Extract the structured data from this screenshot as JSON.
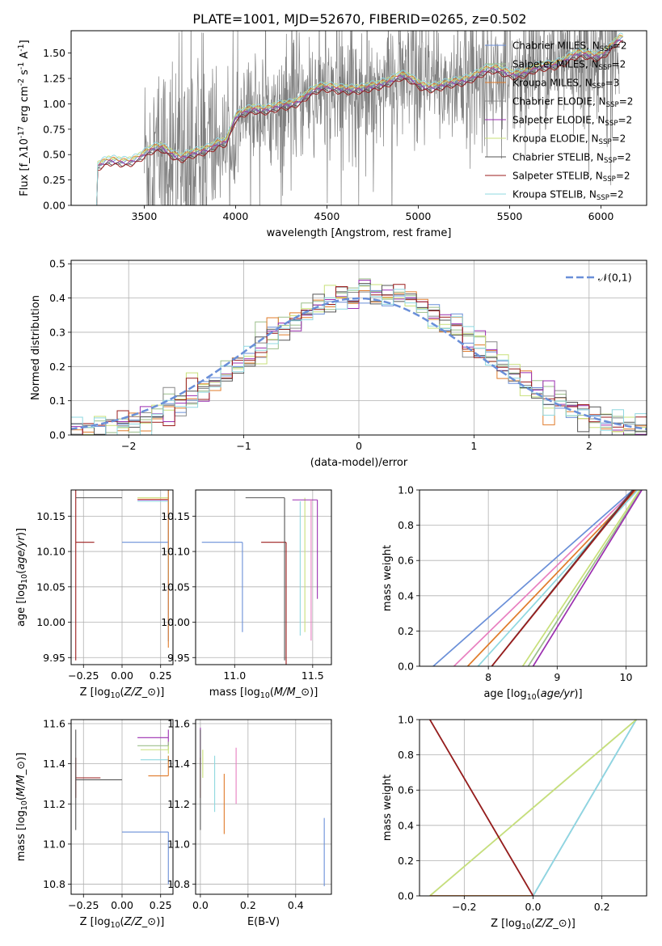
{
  "title": "PLATE=1001, MJD=52670, FIBERID=0265, z=0.502",
  "colors": {
    "c1": "#6a8fd8",
    "c2": "#9bbf8a",
    "c3": "#e07b2a",
    "c4": "#888888",
    "c5": "#9b2fb0",
    "c6": "#c8e07a",
    "c7": "#555555",
    "c8": "#9b1c1c",
    "c9": "#8fd8e0",
    "pink": "#e87fc0",
    "observed": "#7f7f7f",
    "grid": "#b0b0b0"
  },
  "chart_data": [
    {
      "id": "spectrum",
      "type": "line",
      "xlabel": "wavelength [Angstrom, rest frame]",
      "ylabel": "Flux [f$_\\lambda$10$^{-17}$ erg cm$^{-2}$ s$^{-1}$ A$^{-1}$]",
      "xlim": [
        3100,
        6250
      ],
      "ylim": [
        0,
        1.72
      ],
      "xticks": [
        3500,
        4000,
        4500,
        5000,
        5500,
        6000
      ],
      "yticks": [
        0.0,
        0.25,
        0.5,
        0.75,
        1.0,
        1.25,
        1.5
      ],
      "xtick_labels": [
        "3500",
        "4000",
        "4500",
        "5000",
        "5500",
        "6000"
      ],
      "ytick_labels": [
        "0.00",
        "0.25",
        "0.50",
        "0.75",
        "1.00",
        "1.25",
        "1.50"
      ],
      "grid": false,
      "legend_loc": "upper right",
      "observed_range": [
        3500,
        6100
      ],
      "model_anchor_x": [
        3240,
        3245,
        3300,
        3400,
        3500,
        3600,
        3700,
        3800,
        3900,
        3950,
        4000,
        4100,
        4200,
        4300,
        4400,
        4500,
        4600,
        4700,
        4800,
        4900,
        5000,
        5100,
        5200,
        5300,
        5400,
        5500,
        5600,
        5700,
        5800,
        5900,
        6000,
        6100
      ],
      "model_anchor_y": [
        0.0,
        0.37,
        0.42,
        0.45,
        0.47,
        0.52,
        0.46,
        0.52,
        0.62,
        0.6,
        0.8,
        0.93,
        0.95,
        1.0,
        1.08,
        1.1,
        1.15,
        1.14,
        1.2,
        1.22,
        1.16,
        1.18,
        1.2,
        1.25,
        1.28,
        1.3,
        1.32,
        1.36,
        1.38,
        1.45,
        1.5,
        1.62
      ],
      "series": [
        {
          "name": "Chabrier MILES, N$_{SSP}$=2",
          "color": "#6a8fd8",
          "offset": 0.02
        },
        {
          "name": "Salpeter MILES, N$_{SSP}$=2",
          "color": "#9bbf8a",
          "offset": 0.03
        },
        {
          "name": "Kroupa MILES, N$_{SSP}$=3",
          "color": "#e07b2a",
          "offset": 0.04
        },
        {
          "name": "Chabrier ELODIE, N$_{SSP}$=2",
          "color": "#888888",
          "offset": 0.0
        },
        {
          "name": "Salpeter ELODIE, N$_{SSP}$=2",
          "color": "#9b2fb0",
          "offset": 0.01
        },
        {
          "name": "Kroupa ELODIE, N$_{SSP}$=2",
          "color": "#c8e07a",
          "offset": 0.05
        },
        {
          "name": "Chabrier STELIB, N$_{SSP}$=2",
          "color": "#555555",
          "offset": -0.01
        },
        {
          "name": "Salpeter STELIB, N$_{SSP}$=2",
          "color": "#9b1c1c",
          "offset": -0.02
        },
        {
          "name": "Kroupa STELIB, N$_{SSP}$=2",
          "color": "#8fd8e0",
          "offset": 0.06
        }
      ]
    },
    {
      "id": "residuals",
      "type": "histogram",
      "xlabel": "(data-model)/error",
      "ylabel": "Normed distribution",
      "xlim": [
        -2.5,
        2.5
      ],
      "ylim": [
        0,
        0.51
      ],
      "xticks": [
        -2,
        -1,
        0,
        1,
        2
      ],
      "yticks": [
        0.0,
        0.1,
        0.2,
        0.3,
        0.4,
        0.5
      ],
      "xtick_labels": [
        "−2",
        "−1",
        "0",
        "1",
        "2"
      ],
      "ytick_labels": [
        "0.0",
        "0.1",
        "0.2",
        "0.3",
        "0.4",
        "0.5"
      ],
      "grid": true,
      "legend_loc": "upper right",
      "reference": {
        "name": "$\\mathcal{N}(0,1)$",
        "color": "#6a8fd8",
        "style": "dashed"
      },
      "bins": 50,
      "bin_range": [
        -2.5,
        2.5
      ]
    },
    {
      "id": "age_vs_Z",
      "type": "errorbar",
      "xlabel": "Z [log$_{10}$($Z/Z_\\odot$)]",
      "ylabel": "age  [log$_{10}$($age/yr$)]",
      "xlim": [
        -0.33,
        0.33
      ],
      "ylim": [
        9.94,
        10.187
      ],
      "xticks": [
        -0.25,
        0.0,
        0.25
      ],
      "yticks": [
        9.95,
        10.0,
        10.05,
        10.1,
        10.15
      ],
      "xtick_labels": [
        "−0.25",
        "0.00",
        "0.25"
      ],
      "ytick_labels": [
        "9.95",
        "10.00",
        "10.05",
        "10.10",
        "10.15"
      ],
      "grid": true,
      "points": [
        {
          "x": -0.3,
          "y": 10.176,
          "xerr": 0.0,
          "yerr": 0.23,
          "color": "#9b1c1c"
        },
        {
          "x": -0.3,
          "y": 10.113,
          "xerr": [
            0.0,
            0.12
          ],
          "yerr": 0.0,
          "color": "#9b1c1c"
        },
        {
          "x": -0.3,
          "y": 10.176,
          "xerr": [
            0.0,
            0.3
          ],
          "yerr": 0.0,
          "color": "#555555"
        },
        {
          "x": 0.3,
          "y": 10.113,
          "xerr": [
            0.3,
            0.0
          ],
          "yerr": 0.14,
          "color": "#6a8fd8"
        },
        {
          "x": 0.3,
          "y": 10.176,
          "xerr": [
            0.2,
            0.0
          ],
          "yerr": 0.08,
          "color": "#c8e07a"
        },
        {
          "x": 0.3,
          "y": 10.173,
          "xerr": [
            0.2,
            0.0
          ],
          "yerr": 0.07,
          "color": "#9b2fb0"
        },
        {
          "x": 0.3,
          "y": 10.171,
          "xerr": [
            0.2,
            0.0
          ],
          "yerr": 0.11,
          "color": "#8fd8e0"
        },
        {
          "x": 0.3,
          "y": 10.174,
          "xerr": [
            0.2,
            0.0
          ],
          "yerr": 0.21,
          "color": "#e07b2a"
        }
      ]
    },
    {
      "id": "age_vs_mass",
      "type": "errorbar",
      "xlabel": "mass [log$_{10}$($M/M_\\odot$)]",
      "ylabel": "",
      "xlim": [
        10.75,
        11.62
      ],
      "ylim": [
        9.94,
        10.187
      ],
      "xticks": [
        11.0,
        11.5
      ],
      "yticks": [
        9.95,
        10.0,
        10.05,
        10.1,
        10.15
      ],
      "xtick_labels": [
        "11.0",
        "11.5"
      ],
      "ytick_labels": [
        "9.95",
        "10.00",
        "10.05",
        "10.10",
        "10.15"
      ],
      "grid": true,
      "points": [
        {
          "x": 11.05,
          "y": 10.113,
          "xerr": [
            0.26,
            0.0
          ],
          "yerr": [
            0.127,
            0.0
          ],
          "color": "#6a8fd8"
        },
        {
          "x": 11.33,
          "y": 10.113,
          "xerr": [
            0.16,
            0.0
          ],
          "yerr": [
            0.22,
            0.0
          ],
          "color": "#9b1c1c"
        },
        {
          "x": 11.32,
          "y": 10.176,
          "xerr": [
            0.25,
            0.0
          ],
          "yerr": [
            0.23,
            0.0
          ],
          "color": "#555555"
        },
        {
          "x": 11.45,
          "y": 10.176,
          "xerr": [
            0.0,
            0.0
          ],
          "yerr": [
            0.19,
            0.0
          ],
          "color": "#c8e07a"
        },
        {
          "x": 11.53,
          "y": 10.173,
          "xerr": [
            0.16,
            0.0
          ],
          "yerr": [
            0.14,
            0.0
          ],
          "color": "#9b2fb0"
        },
        {
          "x": 11.42,
          "y": 10.171,
          "xerr": [
            0.0,
            0.0
          ],
          "yerr": [
            0.19,
            0.0
          ],
          "color": "#8fd8e0"
        },
        {
          "x": 11.49,
          "y": 10.174,
          "xerr": [
            0.0,
            0.0
          ],
          "yerr": [
            0.2,
            0.0
          ],
          "color": "#e87fc0"
        }
      ]
    },
    {
      "id": "cumulative_age",
      "type": "line",
      "xlabel": "age  [log$_{10}$($age/yr$)]",
      "ylabel": "mass weight",
      "xlim": [
        7.0,
        10.3
      ],
      "ylim": [
        0.0,
        1.0
      ],
      "xticks": [
        8,
        9,
        10
      ],
      "yticks": [
        0.0,
        0.2,
        0.4,
        0.6,
        0.8,
        1.0
      ],
      "xtick_labels": [
        "8",
        "9",
        "10"
      ],
      "ytick_labels": [
        "0.0",
        "0.2",
        "0.4",
        "0.6",
        "0.8",
        "1.0"
      ],
      "grid": true,
      "series": [
        {
          "x": [
            7.2,
            10.1
          ],
          "y": [
            0.0,
            1.0
          ],
          "color": "#6a8fd8"
        },
        {
          "x": [
            7.5,
            10.12
          ],
          "y": [
            0.0,
            1.0
          ],
          "color": "#e87fc0"
        },
        {
          "x": [
            7.7,
            10.15
          ],
          "y": [
            0.0,
            1.0
          ],
          "color": "#e07b2a"
        },
        {
          "x": [
            7.85,
            10.17
          ],
          "y": [
            0.0,
            1.0
          ],
          "color": "#8fd8e0"
        },
        {
          "x": [
            8.05,
            10.1
          ],
          "y": [
            0.0,
            1.0
          ],
          "color": "#555555"
        },
        {
          "x": [
            8.05,
            10.12
          ],
          "y": [
            0.0,
            1.0
          ],
          "color": "#9b1c1c"
        },
        {
          "x": [
            8.5,
            10.2
          ],
          "y": [
            0.0,
            1.0
          ],
          "color": "#c8e07a"
        },
        {
          "x": [
            8.58,
            10.22
          ],
          "y": [
            0.0,
            1.0
          ],
          "color": "#9bbf8a"
        },
        {
          "x": [
            8.65,
            10.23
          ],
          "y": [
            0.0,
            1.0
          ],
          "color": "#9b2fb0"
        }
      ]
    },
    {
      "id": "mass_vs_Z",
      "type": "errorbar",
      "xlabel": "Z [log$_{10}$($Z/Z_\\odot$)]",
      "ylabel": "mass [log$_{10}$($M/M_\\odot$)]",
      "xlim": [
        -0.33,
        0.33
      ],
      "ylim": [
        10.75,
        11.62
      ],
      "xticks": [
        -0.25,
        0.0,
        0.25
      ],
      "yticks": [
        10.8,
        11.0,
        11.2,
        11.4,
        11.6
      ],
      "xtick_labels": [
        "−0.25",
        "0.00",
        "0.25"
      ],
      "ytick_labels": [
        "10.8",
        "11.0",
        "11.2",
        "11.4",
        "11.6"
      ],
      "grid": true,
      "points": [
        {
          "x": -0.3,
          "y": 11.33,
          "xerr": [
            0.0,
            0.16
          ],
          "yerr": 0.1,
          "color": "#9b1c1c"
        },
        {
          "x": -0.3,
          "y": 11.32,
          "xerr": [
            0.0,
            0.3
          ],
          "yerr": 0.25,
          "color": "#555555"
        },
        {
          "x": 0.3,
          "y": 11.06,
          "xerr": [
            0.3,
            0.0
          ],
          "yerr": [
            0.26,
            0.0
          ],
          "color": "#6a8fd8"
        },
        {
          "x": 0.3,
          "y": 11.53,
          "xerr": [
            0.2,
            0.0
          ],
          "yerr": 0.04,
          "color": "#9b2fb0"
        },
        {
          "x": 0.3,
          "y": 11.49,
          "xerr": [
            0.2,
            0.0
          ],
          "yerr": 0.02,
          "color": "#9bbf8a"
        },
        {
          "x": 0.3,
          "y": 11.47,
          "xerr": [
            0.18,
            0.0
          ],
          "yerr": 0.02,
          "color": "#c8e07a"
        },
        {
          "x": 0.3,
          "y": 11.42,
          "xerr": [
            0.18,
            0.0
          ],
          "yerr": 0.02,
          "color": "#8fd8e0"
        },
        {
          "x": 0.3,
          "y": 11.34,
          "xerr": [
            0.13,
            0.0
          ],
          "yerr": [
            0.0,
            0.1
          ],
          "color": "#e07b2a"
        }
      ]
    },
    {
      "id": "mass_vs_ebv",
      "type": "errorbar",
      "xlabel": "E(B-V)",
      "ylabel": "",
      "xlim": [
        -0.02,
        0.55
      ],
      "ylim": [
        10.75,
        11.62
      ],
      "xticks": [
        0.0,
        0.2,
        0.4
      ],
      "yticks": [
        10.8,
        11.0,
        11.2,
        11.4,
        11.6
      ],
      "xtick_labels": [
        "0.0",
        "0.2",
        "0.4"
      ],
      "ytick_labels": [
        "10.8",
        "11.0",
        "11.2",
        "11.4",
        "11.6"
      ],
      "grid": true,
      "points": [
        {
          "x": 0.0,
          "y": 11.5,
          "yerr": 0.08,
          "color": "#9b2fb0"
        },
        {
          "x": 0.0,
          "y": 11.33,
          "yerr": 0.1,
          "color": "#9b1c1c"
        },
        {
          "x": 0.0,
          "y": 11.32,
          "yerr": 0.25,
          "color": "#555555"
        },
        {
          "x": 0.01,
          "y": 11.4,
          "yerr": 0.07,
          "color": "#c8e07a"
        },
        {
          "x": 0.06,
          "y": 11.3,
          "yerr": 0.14,
          "color": "#8fd8e0"
        },
        {
          "x": 0.1,
          "y": 11.2,
          "yerr": 0.15,
          "color": "#e07b2a"
        },
        {
          "x": 0.15,
          "y": 11.34,
          "yerr": 0.14,
          "color": "#e87fc0"
        },
        {
          "x": 0.52,
          "y": 10.96,
          "yerr": 0.17,
          "color": "#6a8fd8"
        }
      ]
    },
    {
      "id": "cumulative_Z",
      "type": "line",
      "xlabel": "Z [log$_{10}$($Z/Z_\\odot$)]",
      "ylabel": "mass weight",
      "xlim": [
        -0.33,
        0.33
      ],
      "ylim": [
        0.0,
        1.0
      ],
      "xticks": [
        -0.2,
        0.0,
        0.2
      ],
      "yticks": [
        0.0,
        0.2,
        0.4,
        0.6,
        0.8,
        1.0
      ],
      "xtick_labels": [
        "−0.2",
        "0.0",
        "0.2"
      ],
      "ytick_labels": [
        "0.0",
        "0.2",
        "0.4",
        "0.6",
        "0.8",
        "1.0"
      ],
      "grid": true,
      "series": [
        {
          "x": [
            0.0,
            0.3
          ],
          "y": [
            0.0,
            1.0
          ],
          "color": "#6a8fd8"
        },
        {
          "x": [
            0.0,
            0.3
          ],
          "y": [
            0.0,
            1.0
          ],
          "color": "#8fd8e0"
        },
        {
          "x": [
            -0.3,
            0.3
          ],
          "y": [
            0.0,
            1.0
          ],
          "color": "#9bbf8a"
        },
        {
          "x": [
            -0.3,
            0.3
          ],
          "y": [
            0.0,
            1.0
          ],
          "color": "#c8e07a"
        },
        {
          "x": [
            -0.3,
            0.0
          ],
          "y": [
            0.0,
            0.0
          ],
          "color": "#e07b2a"
        },
        {
          "x": [
            -0.3,
            0.0
          ],
          "y": [
            1.0,
            0.0
          ],
          "color": "#555555"
        },
        {
          "x": [
            -0.3,
            0.0
          ],
          "y": [
            1.0,
            0.0
          ],
          "color": "#9b1c1c"
        }
      ]
    }
  ]
}
